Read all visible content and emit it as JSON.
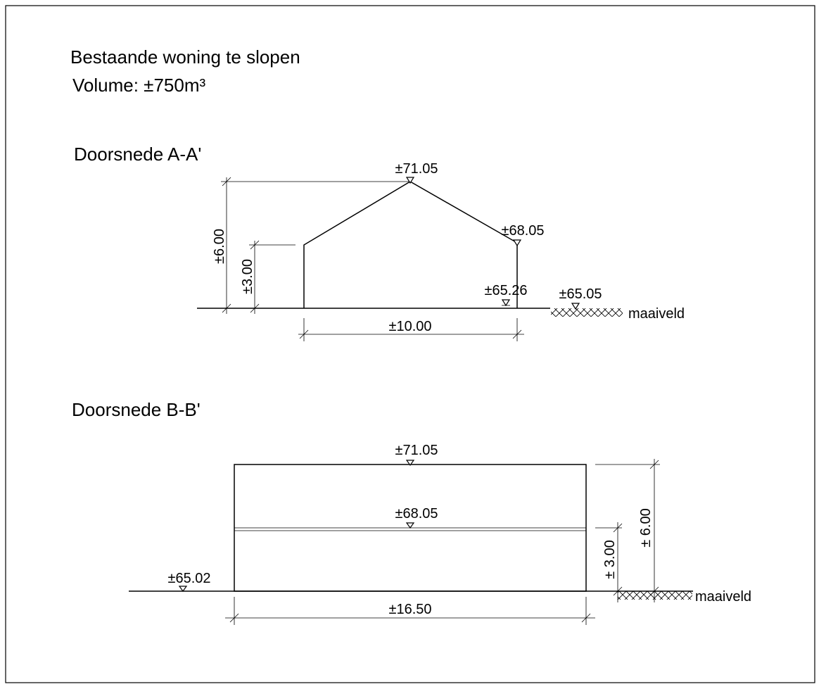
{
  "header": {
    "title": "Bestaande woning te slopen",
    "volume": "Volume: ±750m³"
  },
  "sections": [
    {
      "title": "Doorsnede A-A'",
      "levels": [
        "±71.05",
        "±68.05",
        "±65.26",
        "±65.05"
      ],
      "ground": "maaiveld",
      "width": "±10.00",
      "heights": [
        "±6.00",
        "±3.00"
      ]
    },
    {
      "title": "Doorsnede B-B'",
      "levels": [
        "±71.05",
        "±68.05",
        "±65.02"
      ],
      "ground": "maaiveld",
      "width": "±16.50",
      "heights": [
        "± 6.00",
        "± 3.00"
      ]
    }
  ]
}
